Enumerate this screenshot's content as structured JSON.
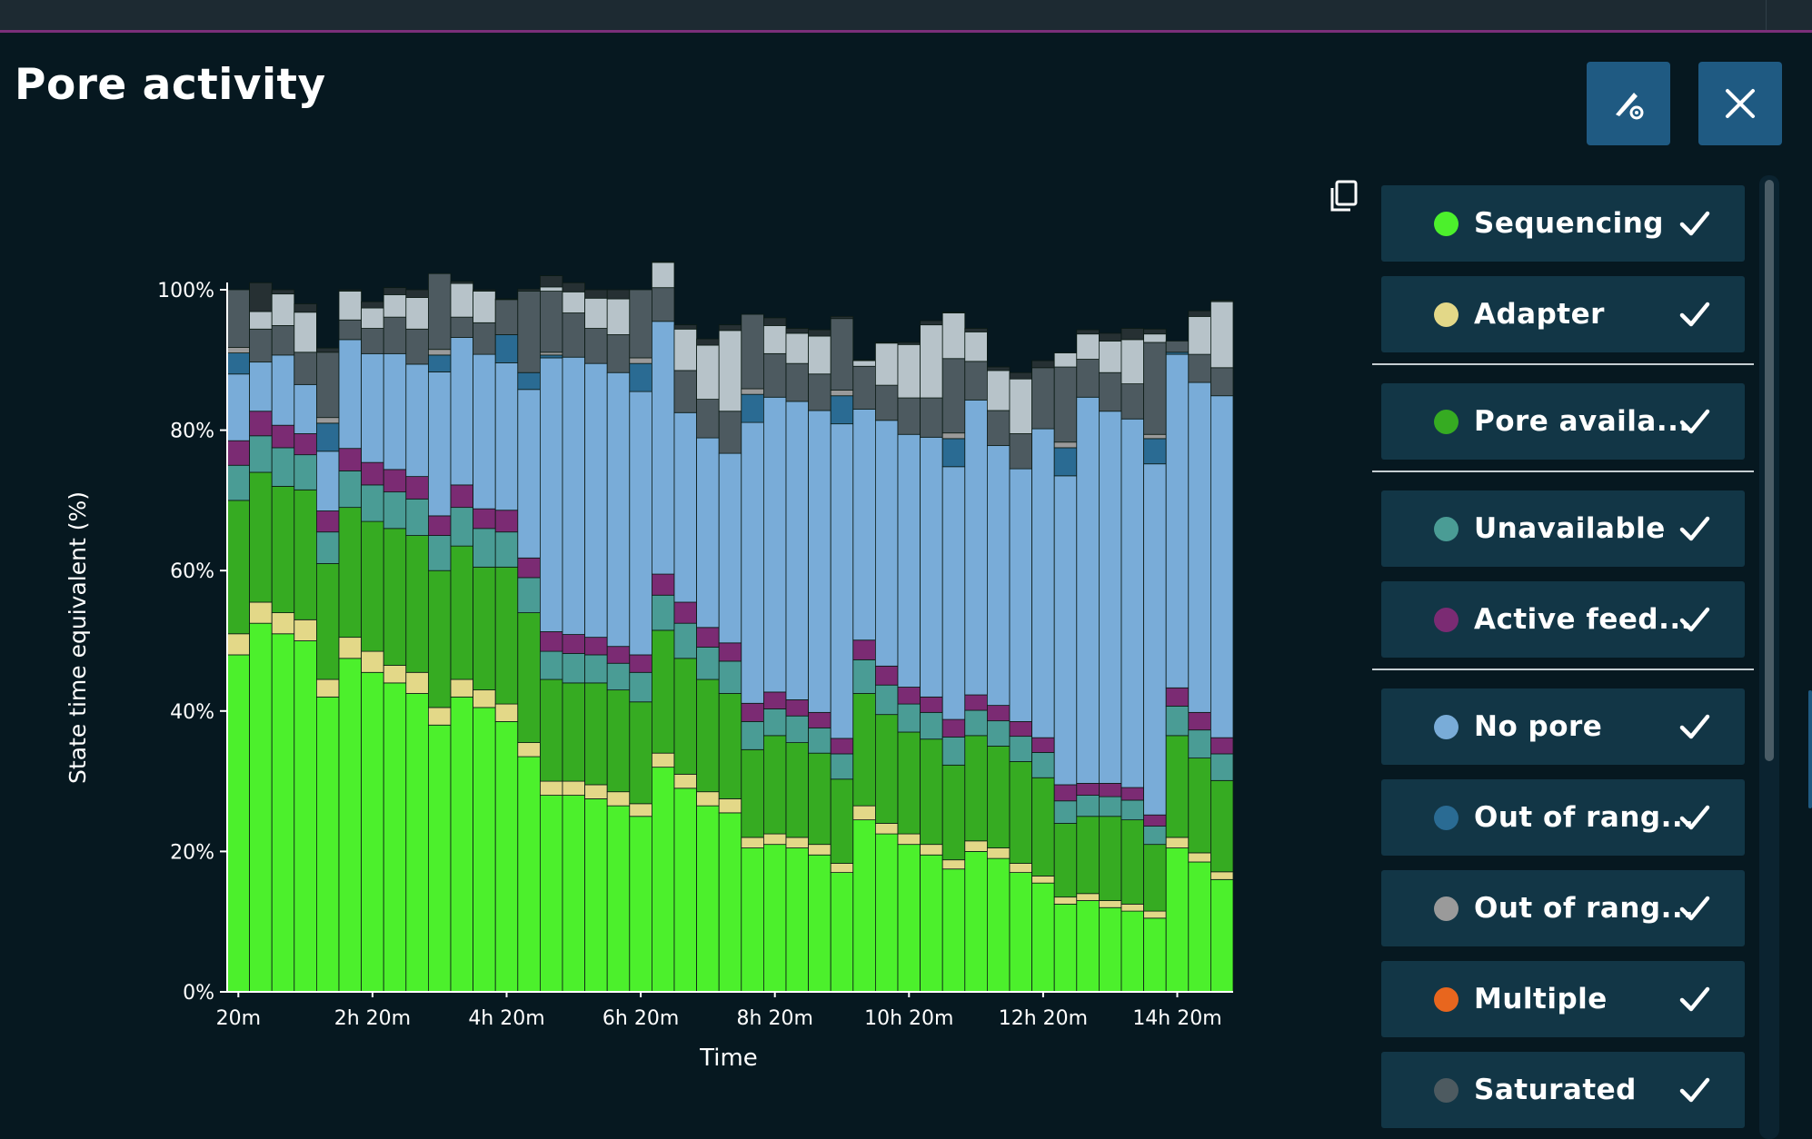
{
  "page": {
    "title": "Pore activity"
  },
  "toolbar": {
    "settings_icon": "settings-pen-icon",
    "close_icon": "close-icon",
    "copy_icon": "copy-icon"
  },
  "legend": [
    {
      "label": "Sequencing",
      "color": "#4cf02c",
      "checked": true
    },
    {
      "label": "Adapter",
      "color": "#e3d888",
      "checked": true
    },
    {
      "label": "Pore availa...",
      "color": "#36ab22",
      "checked": true
    },
    {
      "label": "Unavailable",
      "color": "#4a9c95",
      "checked": true
    },
    {
      "label": "Active feed...",
      "color": "#7b2b73",
      "checked": true
    },
    {
      "label": "No pore",
      "color": "#79acd8",
      "checked": true
    },
    {
      "label": "Out of rang...",
      "color": "#2a6b93",
      "checked": true
    },
    {
      "label": "Out of rang...",
      "color": "#9a9a9a",
      "checked": true
    },
    {
      "label": "Multiple",
      "color": "#e8661e",
      "checked": true
    },
    {
      "label": "Saturated",
      "color": "#4d5a60",
      "checked": true
    }
  ],
  "chart_data": {
    "type": "bar",
    "stacked": true,
    "xlabel": "Time",
    "ylabel": "State time equivalent (%)",
    "ylim": [
      0,
      100
    ],
    "yticks": [
      "0%",
      "20%",
      "40%",
      "60%",
      "80%",
      "100%"
    ],
    "xticks": [
      {
        "index": 0,
        "label": "20m"
      },
      {
        "index": 6,
        "label": "2h 20m"
      },
      {
        "index": 12,
        "label": "4h 20m"
      },
      {
        "index": 18,
        "label": "6h 20m"
      },
      {
        "index": 24,
        "label": "8h 20m"
      },
      {
        "index": 30,
        "label": "10h 20m"
      },
      {
        "index": 36,
        "label": "12h 20m"
      },
      {
        "index": 42,
        "label": "14h 20m"
      }
    ],
    "series": [
      {
        "name": "Sequencing",
        "color": "#4cf02c",
        "values": [
          48,
          52.5,
          51,
          50,
          42,
          47.5,
          45.5,
          44,
          42.5,
          38,
          42,
          40.5,
          38.5,
          33.5,
          28,
          28,
          27.5,
          26.5,
          25,
          32,
          29,
          26.5,
          25.5,
          20.5,
          21,
          20.5,
          19.5,
          17,
          24.5,
          22.5,
          21,
          19.5,
          17.5,
          20,
          19,
          17,
          15.5,
          12.5,
          13,
          12,
          11.5,
          10.5,
          20.5,
          18.5,
          16
        ]
      },
      {
        "name": "Adapter",
        "color": "#e3d888",
        "values": [
          3,
          3,
          3,
          3,
          2.5,
          3,
          3,
          2.5,
          3,
          2.5,
          2.5,
          2.5,
          2.5,
          2,
          2,
          2,
          2,
          2,
          1.8,
          2,
          2,
          2,
          2,
          1.5,
          1.5,
          1.5,
          1.5,
          1.3,
          2,
          1.5,
          1.5,
          1.5,
          1.3,
          1.5,
          1.5,
          1.3,
          1,
          1,
          1,
          1,
          1,
          1,
          1.5,
          1.3,
          1.1
        ]
      },
      {
        "name": "Pore availa...",
        "color": "#36ab22",
        "values": [
          19,
          18.5,
          18,
          18.5,
          16.5,
          18.5,
          18.5,
          19.5,
          19.5,
          19.5,
          19,
          17.5,
          19.5,
          18.5,
          14.5,
          14,
          14.5,
          14.5,
          14.5,
          17.5,
          16.5,
          16,
          15,
          12.5,
          14,
          13.5,
          13,
          12,
          16,
          15.5,
          14.5,
          15,
          13.5,
          15,
          14.5,
          14.5,
          14,
          10.5,
          11,
          12,
          12,
          9.5,
          14.5,
          13.5,
          13
        ]
      },
      {
        "name": "Unavailable",
        "color": "#4a9c95",
        "values": [
          5,
          5.2,
          5.5,
          5,
          4.5,
          5.2,
          5.2,
          5.2,
          5.2,
          5,
          5.5,
          5.5,
          5,
          5,
          4,
          4.2,
          4,
          3.8,
          4.2,
          5,
          5,
          4.6,
          4.6,
          4,
          3.8,
          3.8,
          3.6,
          3.6,
          4.8,
          4.2,
          4,
          3.8,
          4,
          3.6,
          3.6,
          3.6,
          3.6,
          3.2,
          3,
          2.8,
          2.8,
          2.6,
          4.2,
          4,
          3.8
        ]
      },
      {
        "name": "Active feed...",
        "color": "#7b2b73",
        "values": [
          3.5,
          3.5,
          3.2,
          3,
          3,
          3.2,
          3.2,
          3.2,
          3.2,
          2.8,
          3.2,
          2.8,
          3.1,
          2.8,
          2.8,
          2.7,
          2.5,
          2.4,
          2.5,
          3,
          3,
          2.8,
          2.6,
          2.6,
          2.4,
          2.3,
          2.2,
          2.2,
          2.8,
          2.7,
          2.4,
          2.2,
          2.5,
          2.2,
          2.2,
          2.1,
          2.1,
          2.3,
          1.7,
          1.9,
          1.8,
          1.6,
          2.6,
          2.5,
          2.3
        ]
      },
      {
        "name": "No pore",
        "color": "#79acd8",
        "values": [
          9.5,
          7,
          10,
          7,
          8.5,
          15.5,
          15.5,
          16.5,
          16,
          20.5,
          21,
          22,
          21,
          24,
          39,
          39.5,
          39,
          39,
          37.5,
          36,
          27,
          27,
          27,
          40,
          42,
          42.5,
          43,
          44.8,
          32.9,
          35,
          36,
          37,
          36,
          42,
          37,
          36,
          44,
          44,
          55,
          53,
          52.5,
          50,
          47.5,
          47,
          48.7
        ]
      },
      {
        "name": "Out of rang...",
        "color": "#2a6b93",
        "values": [
          3,
          0,
          0,
          0,
          4,
          0,
          0,
          0,
          0,
          2.4,
          0,
          0,
          4,
          2.4,
          0.4,
          0,
          0,
          0,
          4,
          0,
          0,
          0,
          0,
          4,
          0,
          0,
          0,
          4,
          0,
          0,
          0,
          0,
          4,
          0,
          0,
          0,
          0,
          4,
          0,
          0,
          0,
          3.6,
          0.3,
          0,
          0
        ]
      },
      {
        "name": "Out of rang...",
        "color": "#9a9a9a",
        "values": [
          0.8,
          0,
          0,
          0,
          0.8,
          0,
          0,
          0,
          0,
          0.8,
          0,
          0,
          0,
          0,
          0.4,
          0,
          0,
          0,
          0.8,
          0,
          0,
          0,
          0,
          0.8,
          0,
          0,
          0,
          0.8,
          0,
          0,
          0,
          0,
          0.8,
          0,
          0,
          0,
          0,
          0.8,
          0,
          0,
          0,
          0.6,
          0,
          0,
          0
        ]
      },
      {
        "name": "Multiple",
        "color": "#e8661e",
        "values": [
          0,
          0,
          0,
          0,
          0,
          0,
          0,
          0,
          0,
          0,
          0,
          0,
          0,
          0,
          0,
          0,
          0,
          0,
          0,
          0,
          0,
          0,
          0,
          0,
          0,
          0,
          0,
          0,
          0,
          0,
          0,
          0,
          0,
          0,
          0,
          0,
          0,
          0,
          0,
          0,
          0,
          0,
          0,
          0,
          0
        ]
      },
      {
        "name": "Saturated",
        "color": "#4d5a60",
        "values": [
          8.2,
          4.7,
          4.2,
          4.6,
          9.3,
          2.8,
          3.6,
          5.2,
          5,
          10.8,
          2.9,
          4.5,
          5,
          11.6,
          8.7,
          6.3,
          5,
          5.4,
          9.7,
          4.8,
          6,
          5.5,
          6,
          10.6,
          6.2,
          5.4,
          5.2,
          10.2,
          6.1,
          5,
          5.2,
          5.6,
          10.6,
          5.5,
          5,
          5,
          8.7,
          10.7,
          5.4,
          5.5,
          5,
          13.1,
          1.6,
          4,
          4
        ]
      },
      {
        "name": "",
        "color": "#b7c3c9",
        "values": [
          0,
          2.5,
          4.5,
          5.7,
          0,
          4.1,
          2.9,
          3.2,
          4.5,
          0,
          4.8,
          4.5,
          0,
          0,
          0.6,
          3,
          4.3,
          5.1,
          0,
          3.6,
          5.9,
          7.7,
          11.5,
          0,
          4,
          4.3,
          5.4,
          0,
          0.8,
          6,
          7.6,
          10.4,
          6.5,
          4.2,
          5.7,
          7.8,
          0,
          2,
          3.6,
          4.5,
          6.3,
          1.2,
          0,
          5.4,
          9.4
        ]
      },
      {
        "name": "",
        "color": "#263033",
        "values": [
          0,
          4.1,
          0.6,
          1.2,
          0.6,
          0.2,
          0.9,
          1,
          1.1,
          0,
          0.3,
          0.2,
          0.1,
          0.3,
          1.6,
          1.3,
          1.2,
          1.3,
          0,
          0.1,
          0.6,
          0.9,
          0.8,
          0,
          1.1,
          0.7,
          0.9,
          0.3,
          0.1,
          0.1,
          0.3,
          0.6,
          0.1,
          0.5,
          0.5,
          0.9,
          1,
          -0.5,
          0.6,
          1.1,
          1.6,
          0.7,
          0,
          0.8,
          0.2
        ]
      }
    ]
  }
}
